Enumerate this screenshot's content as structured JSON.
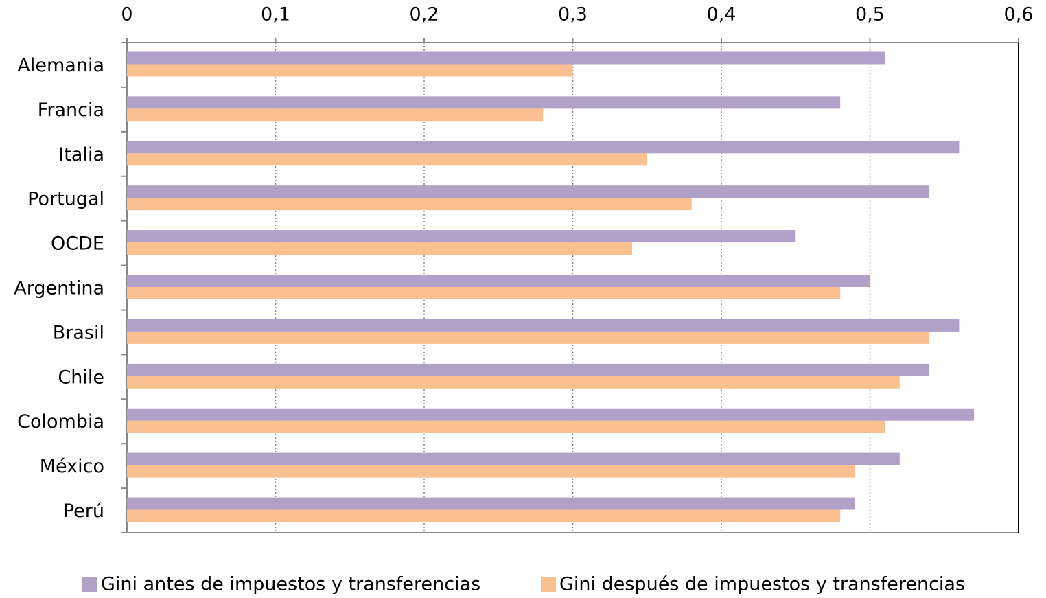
{
  "chart_data": {
    "type": "barh",
    "categories": [
      "Alemania",
      "Francia",
      "Italia",
      "Portugal",
      "OCDE",
      "Argentina",
      "Brasil",
      "Chile",
      "Colombia",
      "México",
      "Perú"
    ],
    "series": [
      {
        "name": "Gini antes de impuestos y transferencias",
        "color": "#b1a0c7",
        "values": [
          0.51,
          0.48,
          0.56,
          0.54,
          0.45,
          0.5,
          0.56,
          0.54,
          0.57,
          0.52,
          0.49
        ]
      },
      {
        "name": "Gini después de impuestos y transferencias",
        "color": "#fac090",
        "values": [
          0.3,
          0.28,
          0.35,
          0.38,
          0.34,
          0.48,
          0.54,
          0.52,
          0.51,
          0.49,
          0.48
        ]
      }
    ],
    "xlim": [
      0,
      0.6
    ],
    "xticks": [
      0,
      {
        "value": 0.1,
        "label": "0,1"
      },
      {
        "value": 0.2,
        "label": "0,2"
      },
      {
        "value": 0.3,
        "label": "0,3"
      },
      {
        "value": 0.4,
        "label": "0,4"
      },
      {
        "value": 0.5,
        "label": "0,5"
      },
      {
        "value": 0.6,
        "label": "0,6"
      }
    ],
    "grid": true,
    "legend": "bottom"
  }
}
